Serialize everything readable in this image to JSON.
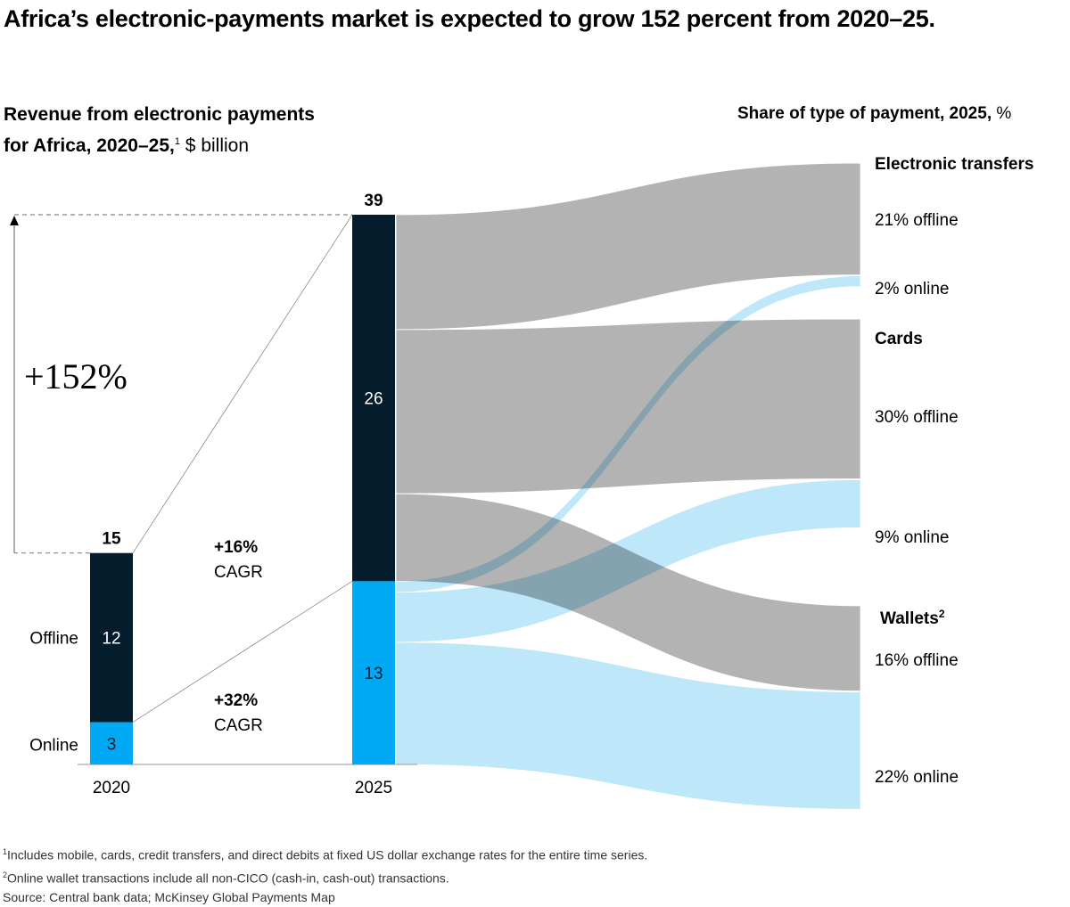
{
  "title": "Africa’s electronic-payments market is expected to grow 152 percent from 2020–25.",
  "left_subtitle": {
    "bold_line1": "Revenue from electronic payments",
    "bold_line2": "for Africa, 2020–25,",
    "footnote_ref": "1",
    "unit": " $ billion"
  },
  "right_subtitle": {
    "bold": "Share of type of payment, 2025,",
    "unit": " %"
  },
  "colors": {
    "offline": "#051c2c",
    "online": "#00a9f4",
    "offline_flow": "#b3b3b3",
    "online_flow": "#b3e3f8",
    "axis": "#999999"
  },
  "chart_data": {
    "type": "bar",
    "subtype": "stacked bar with sankey flow",
    "title": "Revenue from electronic payments for Africa, 2020–25, $ billion",
    "categories": [
      "2020",
      "2025"
    ],
    "series": [
      {
        "name": "Offline",
        "values": [
          12,
          26
        ]
      },
      {
        "name": "Online",
        "values": [
          3,
          13
        ]
      }
    ],
    "totals": [
      15,
      39
    ],
    "total_labels": [
      "15",
      "39"
    ],
    "series_labels": [
      "Offline",
      "Online"
    ],
    "growth_annotation": "+152%",
    "cagr": [
      {
        "series": "Offline",
        "value": "+16%",
        "label": "CAGR"
      },
      {
        "series": "Online",
        "value": "+32%",
        "label": "CAGR"
      }
    ],
    "share_title": "Share of type of payment, 2025, %",
    "share_groups": [
      {
        "name": "Electronic transfers",
        "footnote": "",
        "offline": 21,
        "online": 2,
        "offline_label": "21% offline",
        "online_label": "2% online"
      },
      {
        "name": "Cards",
        "footnote": "",
        "offline": 30,
        "online": 9,
        "offline_label": "30% offline",
        "online_label": "9% online"
      },
      {
        "name": "Wallets",
        "footnote": "2",
        "offline": 16,
        "online": 22,
        "offline_label": "16% offline",
        "online_label": "22% online"
      }
    ]
  },
  "footnotes": [
    {
      "ref": "1",
      "text": "Includes mobile, cards, credit transfers, and direct debits at fixed US dollar exchange rates for the entire time series."
    },
    {
      "ref": "2",
      "text": "Online wallet transactions include all non-CICO (cash-in, cash-out) transactions."
    },
    {
      "ref": "",
      "text": " Source: Central bank data; McKinsey Global Payments Map"
    }
  ]
}
